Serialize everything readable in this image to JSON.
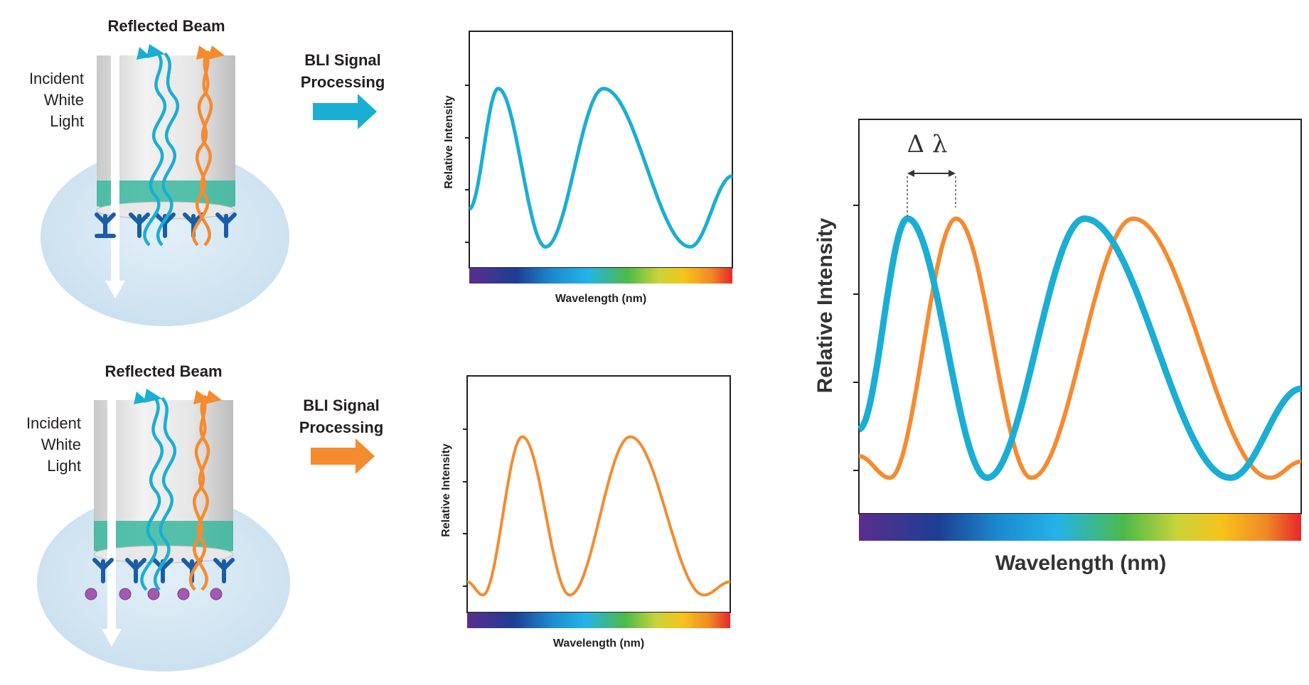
{
  "colors": {
    "blue": "#1aaed4",
    "orange": "#f58b2f",
    "antibody": "#1a5da6",
    "analyte": "#a25ab0",
    "biosensor_layer": "#3ab89d",
    "solution": "#d7e9f5"
  },
  "top_row": {
    "reflected_beam_label": "Reflected Beam",
    "incident_label_lines": [
      "Incident",
      "White",
      "Light"
    ],
    "processing_label_lines": [
      "BLI Signal",
      "Processing"
    ],
    "arrow_color": "blue",
    "chart": {
      "ylabel": "Relative Intensity",
      "xlabel": "Wavelength (nm)"
    }
  },
  "bottom_row": {
    "reflected_beam_label": "Reflected Beam",
    "incident_label_lines": [
      "Incident",
      "White",
      "Light"
    ],
    "processing_label_lines": [
      "BLI Signal",
      "Processing"
    ],
    "arrow_color": "orange",
    "chart": {
      "ylabel": "Relative Intensity",
      "xlabel": "Wavelength (nm)"
    }
  },
  "comparison_chart": {
    "ylabel": "Relative Intensity",
    "xlabel": "Wavelength (nm)",
    "shift_label": "Δ λ"
  },
  "chart_data": [
    {
      "type": "line",
      "ylabel": "Relative Intensity",
      "xlabel": "Wavelength (nm)",
      "series": [
        {
          "color": "#1aaed4",
          "x": [
            0,
            0.11,
            0.29,
            0.51,
            0.84,
            1.0
          ],
          "values": [
            0.25,
            0.98,
            0.02,
            0.98,
            0.02,
            0.45
          ]
        }
      ]
    },
    {
      "type": "line",
      "ylabel": "Relative Intensity",
      "xlabel": "Wavelength (nm)",
      "series": [
        {
          "color": "#f58b2f",
          "x": [
            0,
            0.06,
            0.21,
            0.39,
            0.62,
            0.9,
            1.0
          ],
          "values": [
            0.1,
            0.02,
            0.98,
            0.02,
            0.98,
            0.02,
            0.1
          ]
        }
      ]
    },
    {
      "type": "line",
      "ylabel": "Relative Intensity",
      "xlabel": "Wavelength (nm)",
      "annotations": [
        "Δ λ"
      ],
      "series": [
        {
          "color": "#1aaed4",
          "x": [
            0,
            0.11,
            0.29,
            0.51,
            0.84,
            1.0
          ],
          "values": [
            0.2,
            0.98,
            0.02,
            0.98,
            0.02,
            0.35
          ]
        },
        {
          "color": "#f58b2f",
          "x": [
            0,
            0.07,
            0.22,
            0.39,
            0.62,
            0.93,
            1.0
          ],
          "values": [
            0.1,
            0.02,
            0.98,
            0.02,
            0.98,
            0.02,
            0.08
          ]
        }
      ]
    }
  ]
}
